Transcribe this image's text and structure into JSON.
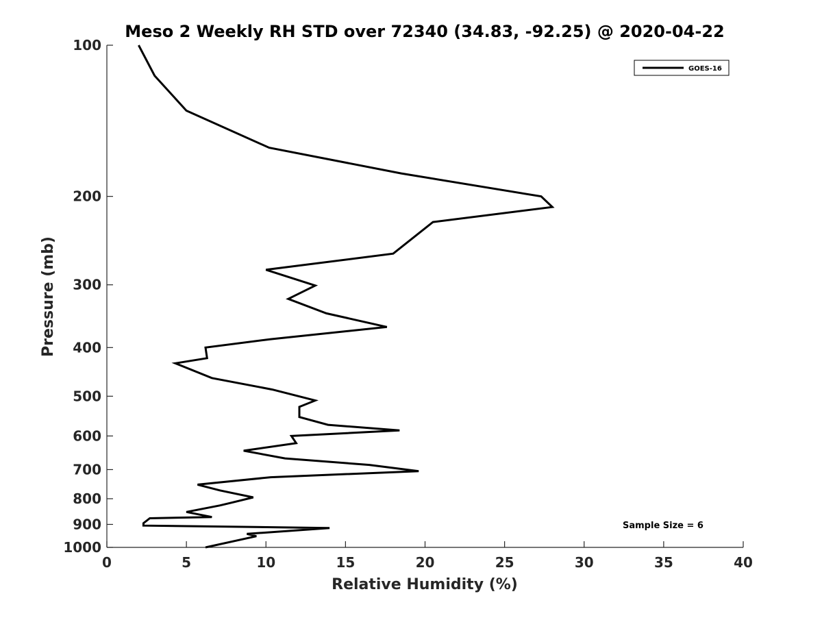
{
  "chart_data": {
    "type": "line",
    "title": "Meso 2 Weekly RH STD over 72340 (34.83, -92.25) @ 2020-04-22",
    "xlabel": "Relative Humidity (%)",
    "ylabel": "Pressure (mb)",
    "xlim": [
      0,
      40
    ],
    "ylim": [
      100,
      1000
    ],
    "y_scale": "log",
    "y_reversed": true,
    "grid": false,
    "legend_position": "top-right",
    "x_ticks": [
      "0",
      "5",
      "10",
      "15",
      "20",
      "25",
      "30",
      "35",
      "40"
    ],
    "y_ticks": [
      "100",
      "200",
      "300",
      "400",
      "500",
      "600",
      "700",
      "800",
      "900",
      "1000"
    ],
    "annotation": "Sample Size = 6",
    "series": [
      {
        "name": "GOES-16",
        "color": "#000000",
        "x": [
          2.0,
          3.0,
          5.0,
          10.2,
          18.5,
          27.3,
          28.0,
          20.5,
          18.0,
          10.0,
          13.1,
          11.4,
          13.8,
          17.6,
          10.3,
          6.2,
          6.3,
          4.3,
          6.6,
          10.4,
          13.1,
          12.1,
          12.1,
          13.9,
          18.4,
          11.6,
          11.9,
          8.6,
          11.2,
          16.5,
          19.6,
          10.3,
          5.7,
          7.1,
          9.2,
          7.8,
          7.1,
          5.0,
          6.6,
          2.7,
          2.3,
          2.3,
          14.0,
          8.8,
          9.4,
          6.2
        ],
        "y": [
          100,
          115,
          135,
          160,
          180,
          200,
          210,
          225,
          260,
          280,
          301,
          320,
          342,
          364,
          385,
          400,
          420,
          430,
          460,
          485,
          510,
          525,
          550,
          570,
          585,
          600,
          620,
          642,
          665,
          685,
          705,
          725,
          750,
          770,
          795,
          815,
          825,
          850,
          870,
          875,
          895,
          905,
          915,
          940,
          950,
          1000
        ]
      }
    ]
  }
}
